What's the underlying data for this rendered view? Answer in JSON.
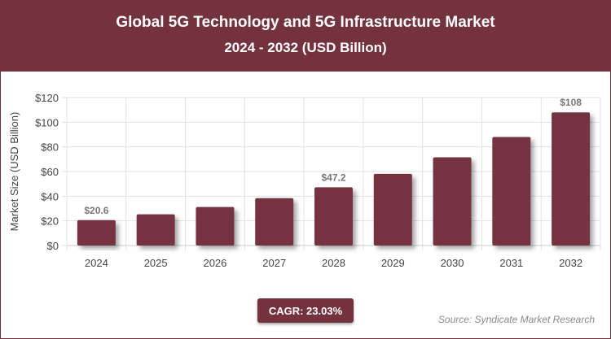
{
  "header": {
    "title": "Global 5G Technology and 5G Infrastructure Market",
    "subtitle": "2024 - 2032 (USD Billion)"
  },
  "chart_data": {
    "type": "bar",
    "title": "Global 5G Technology and 5G Infrastructure Market",
    "subtitle": "2024 - 2032 (USD Billion)",
    "ylabel": "Market Size (USD Billion)",
    "xlabel": "",
    "categories": [
      "2024",
      "2025",
      "2026",
      "2027",
      "2028",
      "2029",
      "2030",
      "2031",
      "2032"
    ],
    "values": [
      20.6,
      25.3,
      31.2,
      38.4,
      47.2,
      58.1,
      71.5,
      88.0,
      108
    ],
    "data_labels": {
      "0": "$20.6",
      "4": "$47.2",
      "8": "$108"
    },
    "ylim": [
      0,
      120
    ],
    "yticks": [
      0,
      20,
      40,
      60,
      80,
      100,
      120
    ],
    "ytick_labels": [
      "$0",
      "$20",
      "$40",
      "$60",
      "$80",
      "$100",
      "$120"
    ],
    "grid": true,
    "bar_color": "#74323f"
  },
  "footer": {
    "cagr": "CAGR: 23.03%",
    "source": "Source: Syndicate Market Research"
  }
}
